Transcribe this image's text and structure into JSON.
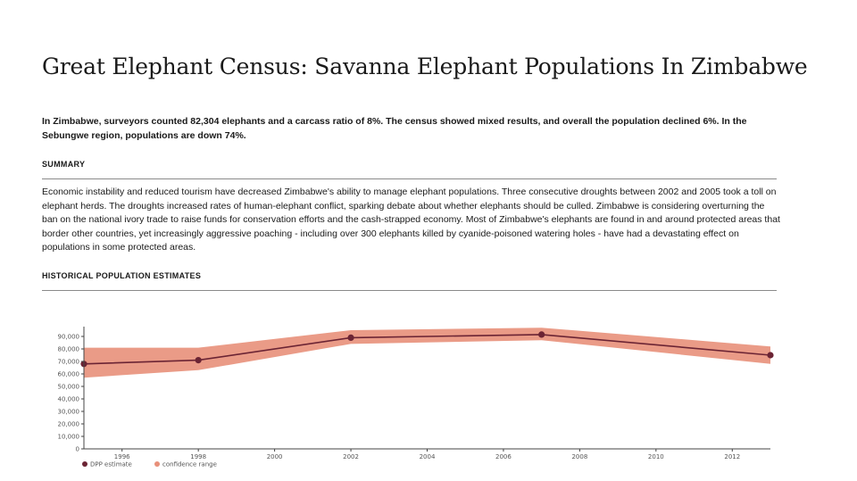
{
  "page": {
    "title": "Great Elephant Census: Savanna Elephant Populations In Zimbabwe",
    "lede": "In Zimbabwe, surveyors counted 82,304 elephants and a carcass ratio of 8%. The census showed mixed results, and overall the population declined 6%. In the Sebungwe region, populations are down 74%.",
    "summary_heading": "SUMMARY",
    "summary_text": "Economic instability and reduced tourism have decreased Zimbabwe's ability to manage elephant populations. Three consecutive droughts between 2002 and 2005 took a toll on elephant herds. The droughts increased rates of human-elephant conflict, sparking debate about whether elephants should be culled. Zimbabwe is considering overturning the ban on the national ivory trade to raise funds for conservation efforts and the cash-strapped economy. Most of Zimbabwe's elephants are found in and around protected areas that border other countries, yet increasingly aggressive poaching - including over 300 elephants killed by cyanide-poisoned watering holes - have had a devastating effect on populations in some protected areas.",
    "chart_heading": "HISTORICAL POPULATION ESTIMATES"
  },
  "chart_data": {
    "type": "line",
    "title": "",
    "xlabel": "",
    "ylabel": "",
    "xlim": [
      1995,
      2013
    ],
    "ylim": [
      0,
      95000
    ],
    "x_ticks": [
      1996,
      1998,
      2000,
      2002,
      2004,
      2006,
      2008,
      2010,
      2012
    ],
    "y_ticks": [
      0,
      10000,
      20000,
      30000,
      40000,
      50000,
      60000,
      70000,
      80000,
      90000
    ],
    "y_tick_labels": [
      "0",
      "10,000",
      "20,000",
      "30,000",
      "40,000",
      "50,000",
      "60,000",
      "70,000",
      "80,000",
      "90,000"
    ],
    "grid": false,
    "legend_position": "bottom-left",
    "series": [
      {
        "name": "DPP estimate",
        "x": [
          1995,
          1998,
          2002,
          2007,
          2013
        ],
        "values": [
          68000,
          71000,
          89000,
          91500,
          75000
        ]
      }
    ],
    "confidence_range": {
      "name": "confidence range",
      "x": [
        1995,
        1998,
        2002,
        2007,
        2013
      ],
      "lower": [
        57000,
        63000,
        84000,
        87000,
        68000
      ],
      "upper": [
        81000,
        81000,
        95000,
        97000,
        82000
      ]
    },
    "colors": {
      "line": "#6b2434",
      "point": "#6b2434",
      "band": "#e8907a"
    }
  }
}
